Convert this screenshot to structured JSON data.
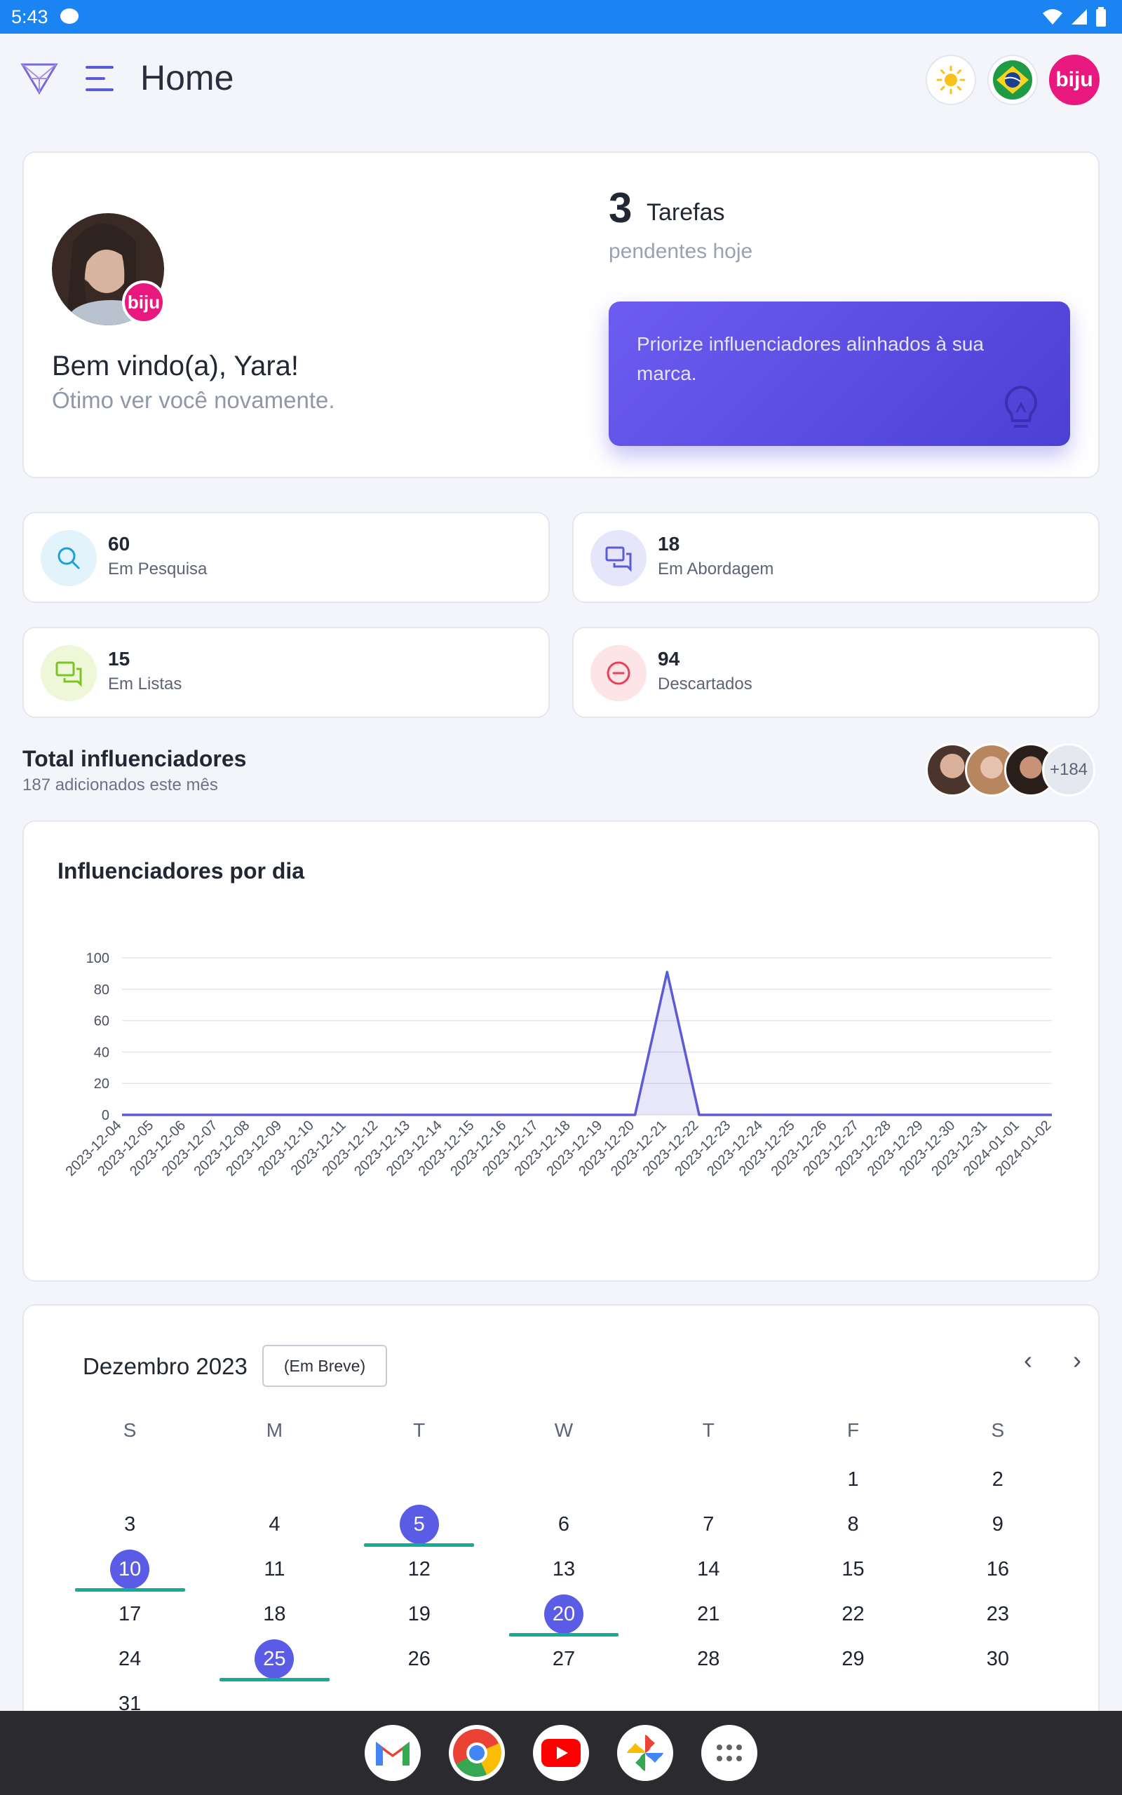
{
  "status_bar": {
    "time": "5:43"
  },
  "app_bar": {
    "title": "Home",
    "brand_badge": "biju"
  },
  "welcome": {
    "greeting": "Bem vindo(a), Yara!",
    "subtitle": "Ótimo ver você novamente.",
    "avatar_badge": "biju",
    "tasks_count": "3",
    "tasks_label": "Tarefas",
    "tasks_sub": "pendentes hoje",
    "tip": "Priorize influenciadores alinhados à sua marca."
  },
  "stats": [
    {
      "value": "60",
      "label": "Em Pesquisa",
      "icon": "search-icon",
      "bg": "#e3f3fb",
      "fg": "#1ba0d8"
    },
    {
      "value": "18",
      "label": "Em Abordagem",
      "icon": "chat-icon",
      "bg": "#e6e6fb",
      "fg": "#5b5bd6"
    },
    {
      "value": "15",
      "label": "Em Listas",
      "icon": "chat-icon",
      "bg": "#eef8d8",
      "fg": "#7cc423"
    },
    {
      "value": "94",
      "label": "Descartados",
      "icon": "minus-circle-icon",
      "bg": "#fde4e7",
      "fg": "#e8415b"
    }
  ],
  "total": {
    "title": "Total influenciadores",
    "subtitle": "187 adicionados este mês",
    "more": "+184"
  },
  "chart_data": {
    "type": "area",
    "title": "Influenciadores por dia",
    "xlabel": "",
    "ylabel": "",
    "ylim": [
      0,
      100
    ],
    "yticks": [
      0,
      20,
      40,
      60,
      80,
      100
    ],
    "grid": true,
    "color": "#5b5bd6",
    "x": [
      "2023-12-04",
      "2023-12-05",
      "2023-12-06",
      "2023-12-07",
      "2023-12-08",
      "2023-12-09",
      "2023-12-10",
      "2023-12-11",
      "2023-12-12",
      "2023-12-13",
      "2023-12-14",
      "2023-12-15",
      "2023-12-16",
      "2023-12-17",
      "2023-12-18",
      "2023-12-19",
      "2023-12-20",
      "2023-12-21",
      "2023-12-22",
      "2023-12-23",
      "2023-12-24",
      "2023-12-25",
      "2023-12-26",
      "2023-12-27",
      "2023-12-28",
      "2023-12-29",
      "2023-12-30",
      "2023-12-31",
      "2024-01-01",
      "2024-01-02"
    ],
    "values": [
      0,
      0,
      0,
      0,
      0,
      0,
      0,
      0,
      0,
      0,
      0,
      0,
      0,
      0,
      0,
      0,
      0,
      91,
      0,
      0,
      0,
      0,
      0,
      0,
      0,
      0,
      0,
      0,
      0,
      0
    ]
  },
  "calendar": {
    "month": "Dezembro 2023",
    "badge": "(Em Breve)",
    "weekdays": [
      "S",
      "M",
      "T",
      "W",
      "T",
      "F",
      "S"
    ],
    "days": [
      "",
      "",
      "",
      "",
      "",
      "1",
      "2",
      "3",
      "4",
      "5",
      "6",
      "7",
      "8",
      "9",
      "10",
      "11",
      "12",
      "13",
      "14",
      "15",
      "16",
      "17",
      "18",
      "19",
      "20",
      "21",
      "22",
      "23",
      "24",
      "25",
      "26",
      "27",
      "28",
      "29",
      "30",
      "31",
      "",
      "",
      "",
      "",
      "",
      ""
    ],
    "highlighted": [
      "5",
      "10",
      "20",
      "25"
    ]
  },
  "dock": [
    "gmail-icon",
    "chrome-icon",
    "youtube-icon",
    "photos-icon",
    "apps-icon"
  ]
}
